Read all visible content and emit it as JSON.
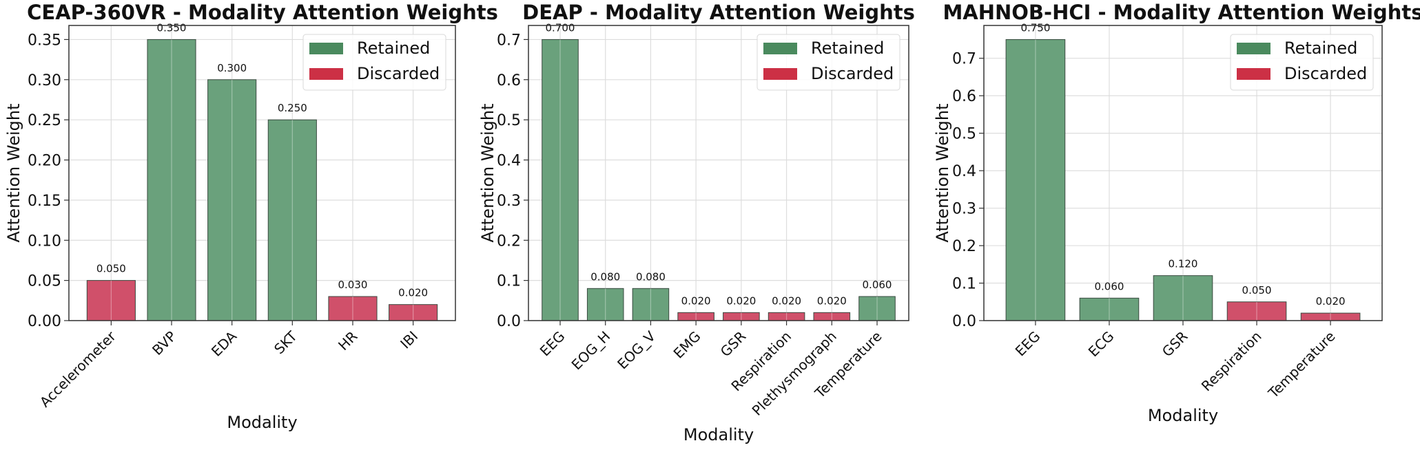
{
  "colors": {
    "retained_bar": "#6aa17c",
    "discarded_bar": "#d0506a",
    "retained_legend": "#4a8a5e",
    "discarded_legend": "#cc3045",
    "bar_edge": "#3a4a40",
    "grid": "#dddddd"
  },
  "chart_data": [
    {
      "type": "bar",
      "title": "CEAP-360VR - Modality Attention Weights",
      "xlabel": "Modality",
      "ylabel": "Attention Weight",
      "categories": [
        "Accelerometer",
        "BVP",
        "EDA",
        "SKT",
        "HR",
        "IBI"
      ],
      "values": [
        0.05,
        0.35,
        0.3,
        0.25,
        0.03,
        0.02
      ],
      "value_labels": [
        "0.050",
        "0.350",
        "0.300",
        "0.250",
        "0.030",
        "0.020"
      ],
      "status": [
        "Discarded",
        "Retained",
        "Retained",
        "Retained",
        "Discarded",
        "Discarded"
      ],
      "yticks": [
        "0.00",
        "0.05",
        "0.10",
        "0.15",
        "0.20",
        "0.25",
        "0.30",
        "0.35"
      ],
      "ylim": [
        0,
        0.3675
      ],
      "grid": true,
      "legend": {
        "position": "top-right",
        "entries": [
          "Retained",
          "Discarded"
        ]
      }
    },
    {
      "type": "bar",
      "title": "DEAP - Modality Attention Weights",
      "xlabel": "Modality",
      "ylabel": "Attention Weight",
      "categories": [
        "EEG",
        "EOG_H",
        "EOG_V",
        "EMG",
        "GSR",
        "Respiration",
        "Plethysmograph",
        "Temperature"
      ],
      "values": [
        0.7,
        0.08,
        0.08,
        0.02,
        0.02,
        0.02,
        0.02,
        0.06
      ],
      "value_labels": [
        "0.700",
        "0.080",
        "0.080",
        "0.020",
        "0.020",
        "0.020",
        "0.020",
        "0.060"
      ],
      "status": [
        "Retained",
        "Retained",
        "Retained",
        "Discarded",
        "Discarded",
        "Discarded",
        "Discarded",
        "Retained"
      ],
      "yticks": [
        "0.0",
        "0.1",
        "0.2",
        "0.3",
        "0.4",
        "0.5",
        "0.6",
        "0.7"
      ],
      "ylim": [
        0,
        0.735
      ],
      "grid": true,
      "legend": {
        "position": "top-right",
        "entries": [
          "Retained",
          "Discarded"
        ]
      }
    },
    {
      "type": "bar",
      "title": "MAHNOB-HCI - Modality Attention Weights",
      "xlabel": "Modality",
      "ylabel": "Attention Weight",
      "categories": [
        "EEG",
        "ECG",
        "GSR",
        "Respiration",
        "Temperature"
      ],
      "values": [
        0.75,
        0.06,
        0.12,
        0.05,
        0.02
      ],
      "value_labels": [
        "0.750",
        "0.060",
        "0.120",
        "0.050",
        "0.020"
      ],
      "status": [
        "Retained",
        "Retained",
        "Retained",
        "Discarded",
        "Discarded"
      ],
      "yticks": [
        "0.0",
        "0.1",
        "0.2",
        "0.3",
        "0.4",
        "0.5",
        "0.6",
        "0.7"
      ],
      "ylim": [
        0,
        0.7875
      ],
      "grid": true,
      "legend": {
        "position": "top-right",
        "entries": [
          "Retained",
          "Discarded"
        ]
      }
    }
  ]
}
